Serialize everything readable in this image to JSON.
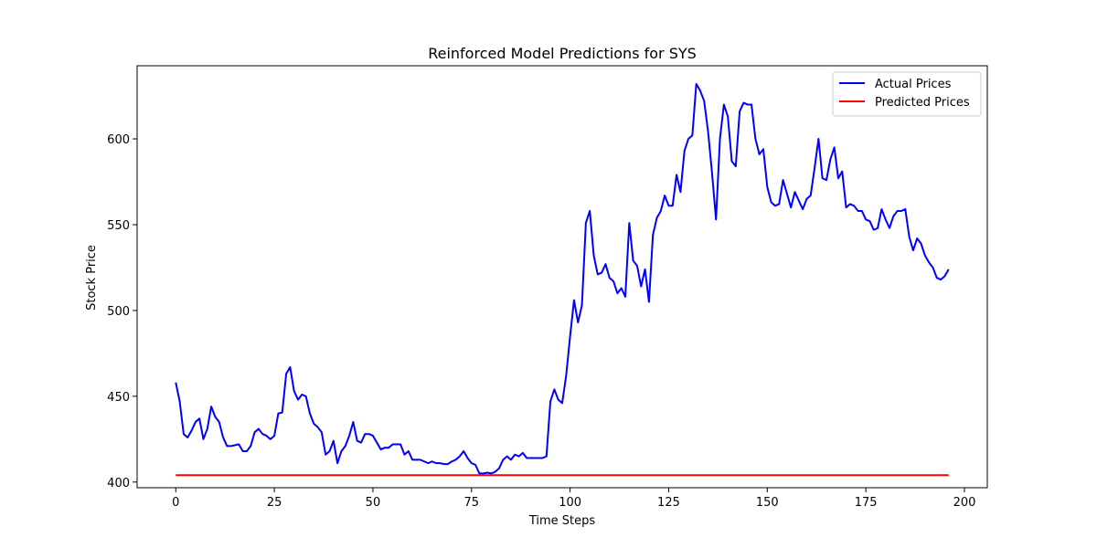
{
  "chart_data": {
    "type": "line",
    "title": "Reinforced Model Predictions for SYS",
    "xlabel": "Time Steps",
    "ylabel": "Stock Price",
    "xlim": [
      -9.8,
      205.8
    ],
    "ylim": [
      396.7,
      642.6
    ],
    "xticks": [
      0,
      25,
      50,
      75,
      100,
      125,
      150,
      175,
      200
    ],
    "yticks": [
      400,
      450,
      500,
      550,
      600
    ],
    "grid": false,
    "legend_position": "top-right",
    "series": [
      {
        "name": "Actual Prices",
        "color": "#0000ff",
        "x_start": 0,
        "values": [
          458,
          447,
          428,
          426,
          430,
          435,
          437,
          425,
          431,
          444,
          438,
          435,
          426,
          421,
          421,
          421.5,
          422,
          418,
          418,
          421,
          429,
          431,
          428,
          427,
          425,
          427,
          440,
          440.5,
          463,
          467,
          453,
          448,
          451,
          450,
          440,
          434,
          432,
          429,
          416,
          418,
          424,
          411,
          418,
          421,
          427,
          435,
          424,
          423,
          428,
          428,
          427,
          423,
          419,
          420,
          420,
          422,
          422,
          422,
          416,
          418,
          413,
          413,
          413,
          412,
          411,
          412,
          411,
          411,
          410.5,
          410.5,
          412,
          413,
          415,
          418,
          414,
          411,
          410,
          405,
          405,
          405.5,
          405,
          406,
          408,
          413,
          415,
          413,
          416,
          415,
          417,
          414,
          414,
          414,
          414,
          414,
          415,
          447,
          454,
          448,
          446,
          462,
          485,
          506,
          493,
          503,
          551,
          558,
          532,
          521,
          522,
          527,
          519,
          517,
          510,
          513,
          508,
          551,
          529,
          526,
          514,
          524,
          505,
          544,
          554,
          558,
          567,
          561,
          561,
          579,
          569,
          593,
          600,
          602,
          632,
          628,
          622,
          604,
          580,
          553,
          600,
          620,
          613,
          587,
          584,
          616,
          621,
          620,
          620,
          600,
          591,
          594,
          572,
          563,
          561,
          562,
          576,
          568,
          560,
          569,
          564,
          559,
          565,
          567,
          583,
          600,
          577,
          576,
          588,
          595,
          577,
          581,
          560,
          562,
          561,
          558,
          558,
          553,
          552,
          547,
          548,
          559,
          553,
          548,
          555,
          558,
          558,
          559,
          543,
          535,
          542,
          539,
          532,
          528,
          525,
          519,
          518,
          520,
          524
        ]
      },
      {
        "name": "Predicted Prices",
        "color": "#ff0000",
        "x": [
          0,
          196
        ],
        "values": [
          404,
          404
        ]
      }
    ]
  }
}
